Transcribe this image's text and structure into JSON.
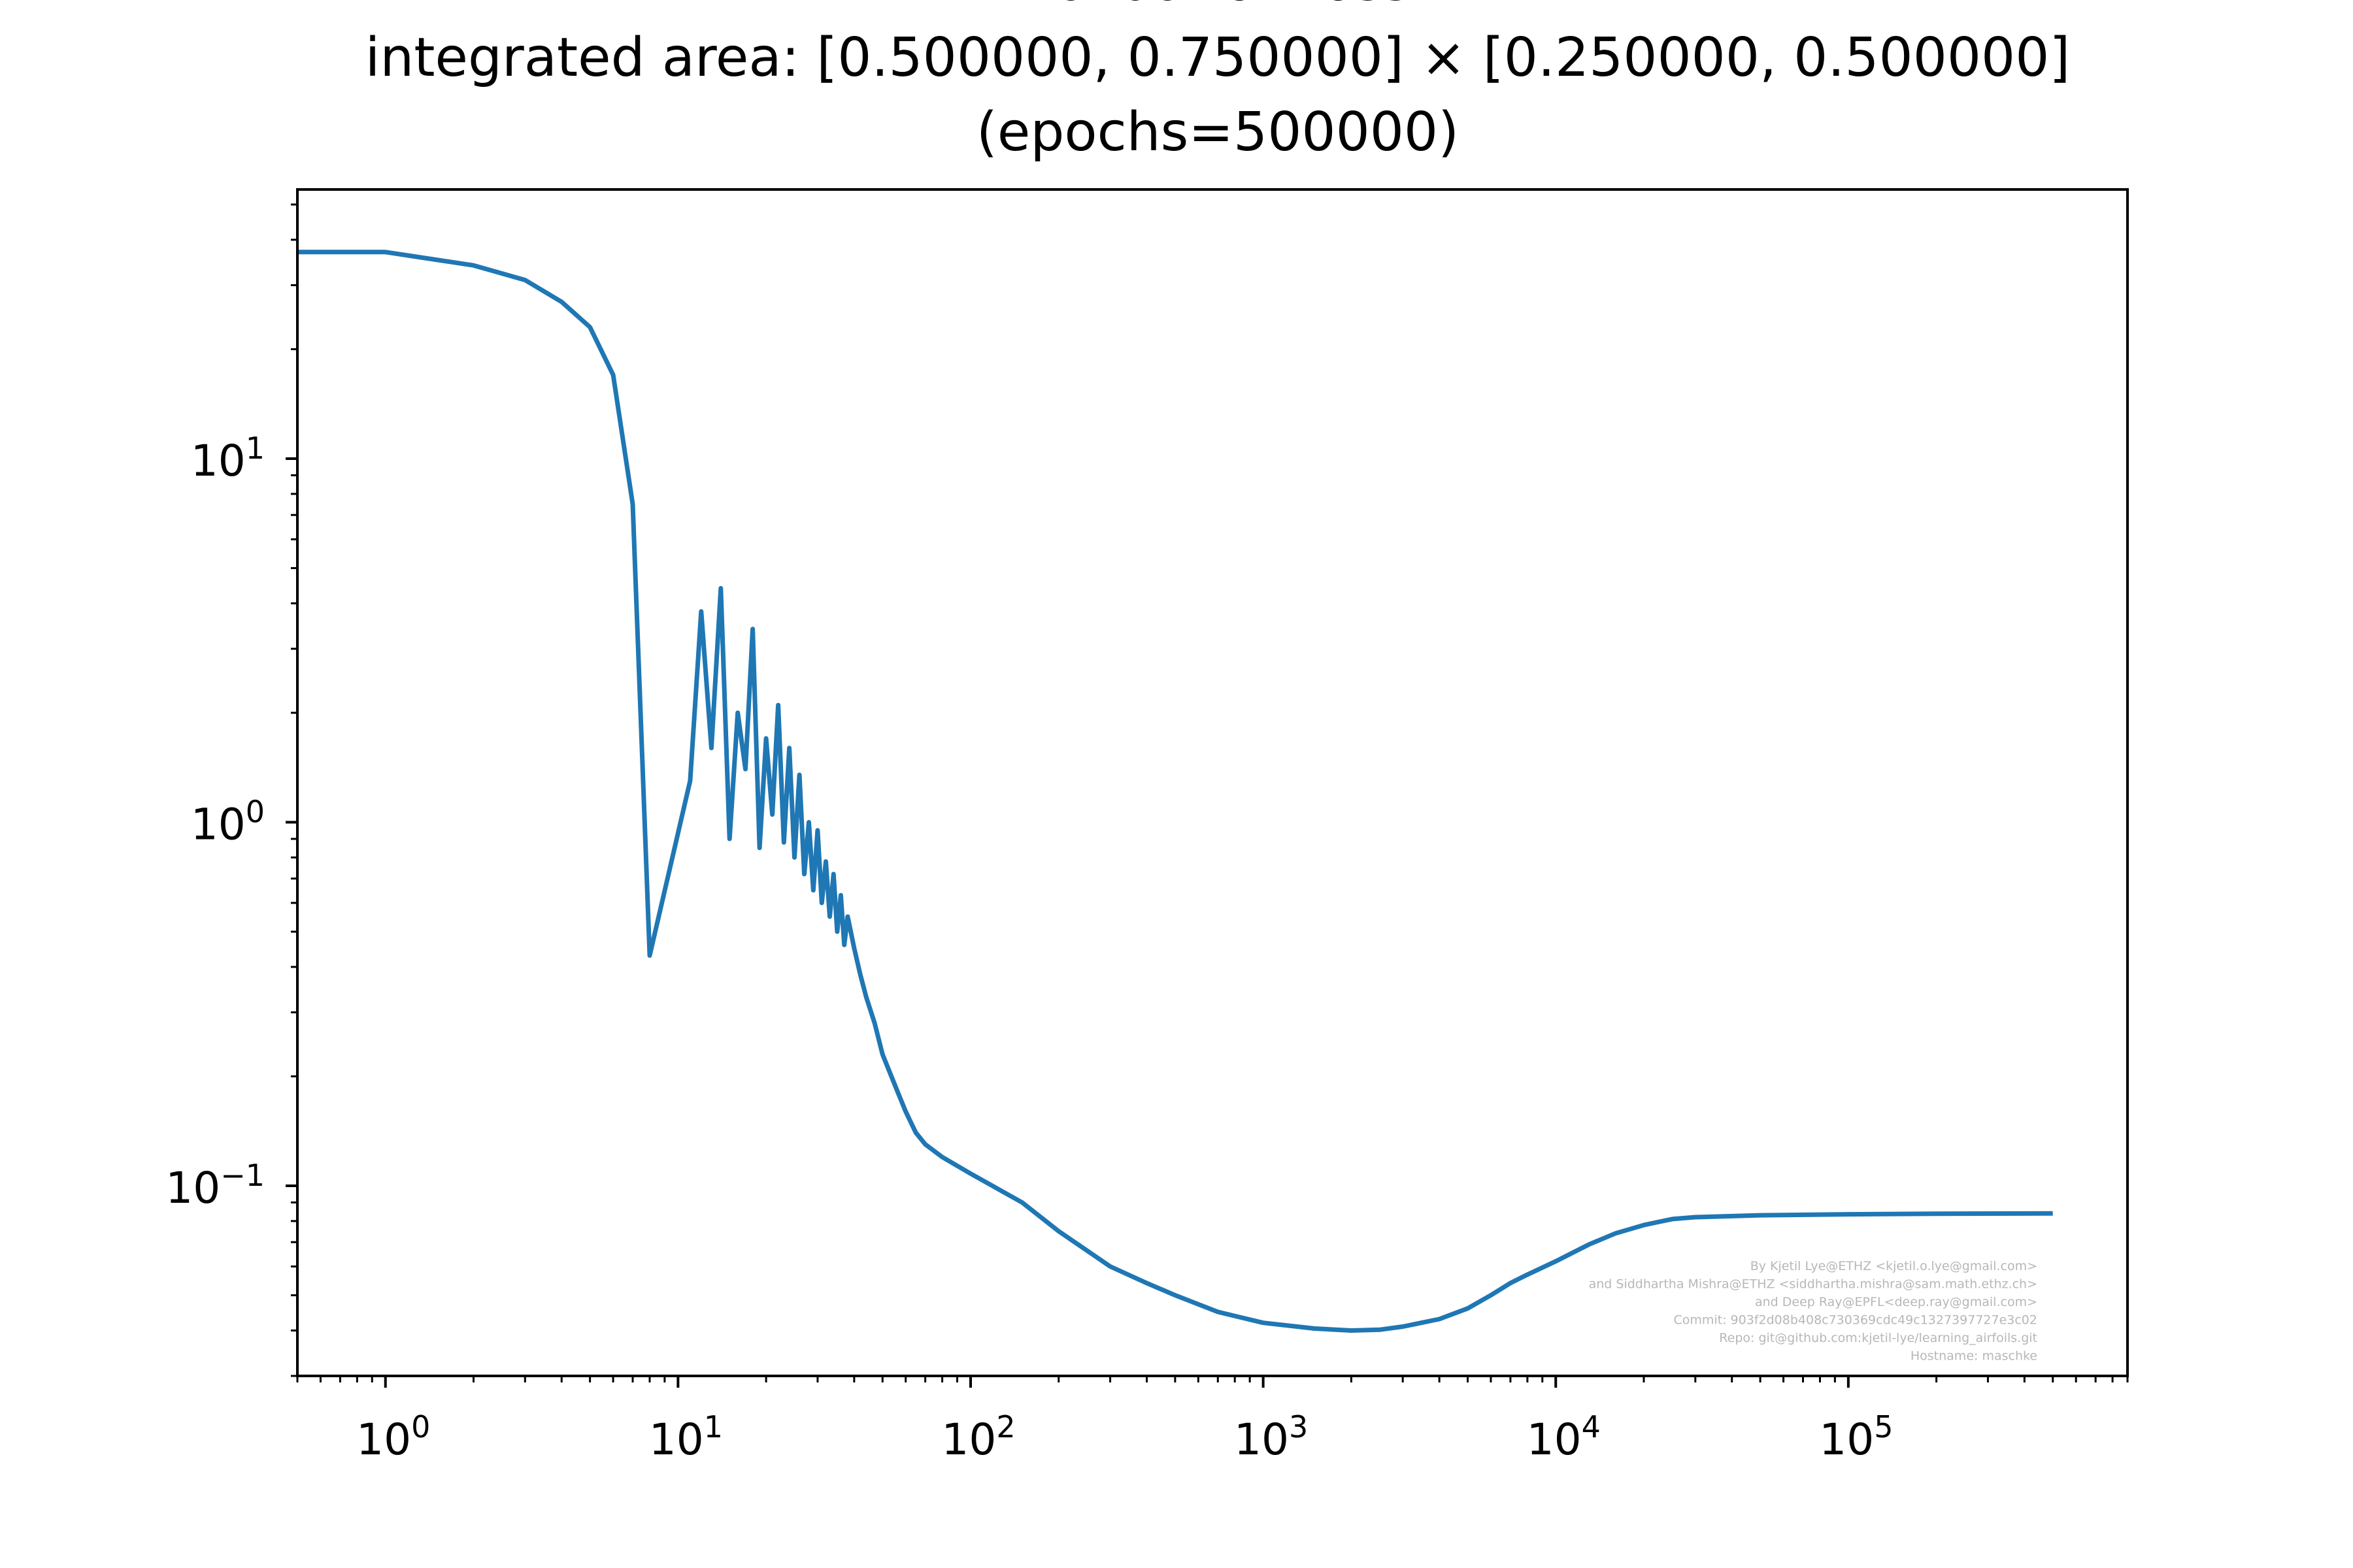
{
  "chart_data": {
    "type": "line",
    "title_lines": [
      "Validation loss",
      "integrated area: [0.500000, 0.750000] × [0.250000, 0.500000]",
      "(epochs=500000)"
    ],
    "xlabel": "",
    "ylabel": "",
    "xscale": "log",
    "yscale": "log",
    "xlim": [
      0.5,
      900000
    ],
    "ylim": [
      0.03,
      55
    ],
    "grid": false,
    "line_color": "#1f77b4",
    "x_ticks": [
      {
        "base": "10",
        "exp": "0",
        "value": 1
      },
      {
        "base": "10",
        "exp": "1",
        "value": 10
      },
      {
        "base": "10",
        "exp": "2",
        "value": 100
      },
      {
        "base": "10",
        "exp": "3",
        "value": 1000
      },
      {
        "base": "10",
        "exp": "4",
        "value": 10000
      },
      {
        "base": "10",
        "exp": "5",
        "value": 100000
      }
    ],
    "y_ticks": [
      {
        "base": "10",
        "exp": "1",
        "value": 10
      },
      {
        "base": "10",
        "exp": "0",
        "value": 1
      },
      {
        "base": "10",
        "exp": "−1",
        "value": 0.1
      }
    ],
    "series": [
      {
        "x": [
          0.5,
          1,
          2,
          3,
          4,
          5,
          6,
          7,
          8,
          11,
          12,
          13,
          14,
          15,
          16,
          17,
          18,
          19,
          20,
          21,
          22,
          23,
          24,
          25,
          26,
          27,
          28,
          29,
          30,
          31,
          32,
          33,
          34,
          35,
          36,
          37,
          38,
          40,
          42,
          44,
          47,
          50,
          55,
          60,
          65,
          70,
          80,
          100,
          150,
          200,
          300,
          400,
          500,
          700,
          1000,
          1500,
          2000,
          2500,
          3000,
          4000,
          5000,
          6000,
          7000,
          8000,
          10000,
          13000,
          16000,
          20000,
          25000,
          30000,
          50000,
          100000,
          200000,
          500000
        ],
        "y": [
          37,
          37,
          34,
          31,
          27,
          23,
          17,
          7.5,
          0.43,
          1.3,
          3.8,
          1.6,
          4.4,
          0.9,
          2.0,
          1.4,
          3.4,
          0.85,
          1.7,
          1.05,
          2.1,
          0.88,
          1.6,
          0.8,
          1.35,
          0.72,
          1.0,
          0.65,
          0.95,
          0.6,
          0.78,
          0.55,
          0.72,
          0.5,
          0.63,
          0.46,
          0.55,
          0.45,
          0.38,
          0.33,
          0.28,
          0.23,
          0.19,
          0.16,
          0.14,
          0.13,
          0.12,
          0.108,
          0.09,
          0.075,
          0.06,
          0.054,
          0.05,
          0.045,
          0.042,
          0.0405,
          0.04,
          0.0402,
          0.041,
          0.043,
          0.046,
          0.05,
          0.054,
          0.057,
          0.062,
          0.069,
          0.074,
          0.078,
          0.081,
          0.082,
          0.083,
          0.0835,
          0.0838,
          0.084
        ]
      }
    ],
    "watermark_lines": [
      "By Kjetil Lye@ETHZ <kjetil.o.lye@gmail.com>",
      "and Siddhartha Mishra@ETHZ <siddhartha.mishra@sam.math.ethz.ch>",
      "and Deep Ray@EPFL<deep.ray@gmail.com>",
      "Commit: 903f2d08b408c730369cdc49c1327397727e3c02",
      "Repo: git@github.com:kjetil-lye/learning_airfoils.git",
      "Hostname: maschke"
    ]
  }
}
